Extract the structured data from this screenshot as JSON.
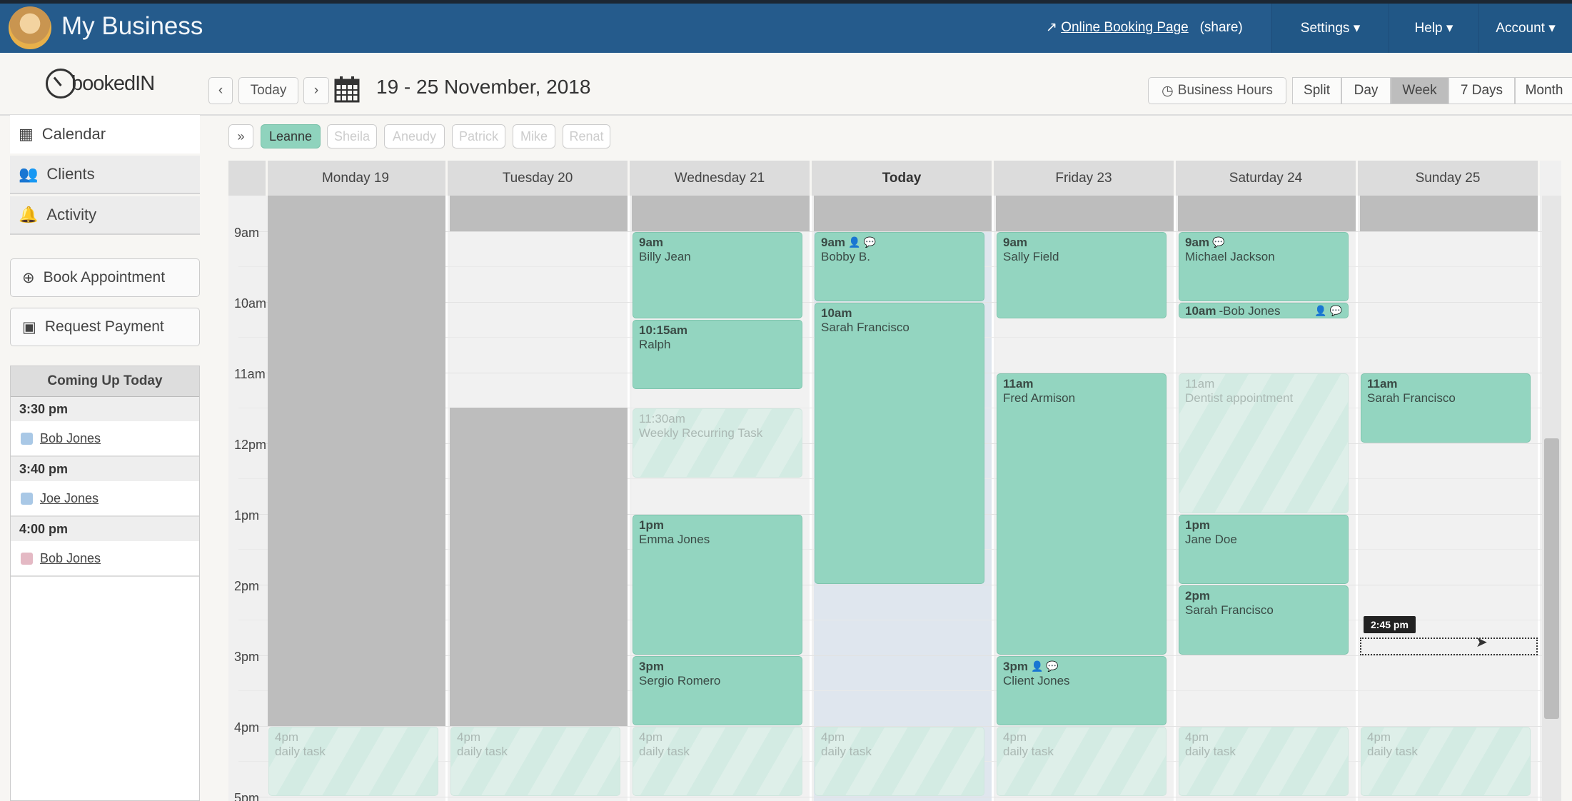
{
  "header": {
    "title": "My Business",
    "booking_link": "Online Booking Page",
    "share": "(share)",
    "menus": [
      "Settings ▾",
      "Help ▾",
      "Account ▾"
    ],
    "color": "#255b8c"
  },
  "toolbar": {
    "logo": "bookedIN",
    "today": "Today",
    "prev": "‹",
    "next": "›",
    "date_range": "19 - 25 November, 2018",
    "business_hours": "Business Hours",
    "views": [
      {
        "label": "Split"
      },
      {
        "label": "Day"
      },
      {
        "label": "Week",
        "active": true
      },
      {
        "label": "7 Days"
      },
      {
        "label": "Month"
      }
    ]
  },
  "sidebar": {
    "items": [
      {
        "label": "Calendar",
        "icon": "calendar-icon",
        "active": true
      },
      {
        "label": "Clients",
        "icon": "users-icon"
      },
      {
        "label": "Activity",
        "icon": "bell-icon"
      }
    ],
    "book_appointment": "Book Appointment",
    "request_payment": "Request Payment",
    "upcoming": {
      "title": "Coming Up Today",
      "items": [
        {
          "time": "3:30 pm",
          "name": "Bob Jones",
          "color": "#a9c8e6"
        },
        {
          "time": "3:40 pm",
          "name": "Joe Jones",
          "color": "#a9c8e6"
        },
        {
          "time": "4:00 pm",
          "name": "Bob Jones",
          "color": "#e4b9c4"
        }
      ]
    }
  },
  "staff": {
    "expand": "»",
    "members": [
      {
        "name": "Leanne",
        "active": true
      },
      {
        "name": "Sheila"
      },
      {
        "name": "Aneudy"
      },
      {
        "name": "Patrick"
      },
      {
        "name": "Mike"
      },
      {
        "name": "Renat"
      }
    ]
  },
  "calendar": {
    "days": [
      {
        "label": "Monday 19"
      },
      {
        "label": "Tuesday 20"
      },
      {
        "label": "Wednesday 21"
      },
      {
        "label": "Today",
        "today": true
      },
      {
        "label": "Friday 23"
      },
      {
        "label": "Saturday 24"
      },
      {
        "label": "Sunday 25"
      }
    ],
    "hours": [
      "9am",
      "10am",
      "11am",
      "12pm",
      "1pm",
      "2pm",
      "3pm",
      "4pm",
      "5pm"
    ],
    "unavailable": [
      {
        "day": 0,
        "start": "8:30",
        "end": "16:00"
      },
      {
        "day": 1,
        "start": "8:30",
        "end": "9:00"
      },
      {
        "day": 1,
        "start": "11:30",
        "end": "16:00"
      },
      {
        "day": 2,
        "start": "8:30",
        "end": "9:00"
      },
      {
        "day": 3,
        "start": "8:30",
        "end": "9:00"
      },
      {
        "day": 4,
        "start": "8:30",
        "end": "9:00"
      },
      {
        "day": 5,
        "start": "8:30",
        "end": "9:00"
      },
      {
        "day": 6,
        "start": "8:30",
        "end": "9:00"
      }
    ],
    "events": [
      {
        "day": 2,
        "start": "9:00",
        "end": "10:15",
        "time": "9am",
        "title": "Billy Jean"
      },
      {
        "day": 2,
        "start": "10:15",
        "end": "11:15",
        "time": "10:15am",
        "title": "Ralph"
      },
      {
        "day": 2,
        "start": "11:30",
        "end": "12:30",
        "time": "11:30am",
        "title": "Weekly Recurring Task",
        "faded": true
      },
      {
        "day": 2,
        "start": "13:00",
        "end": "15:00",
        "time": "1pm",
        "title": "Emma Jones"
      },
      {
        "day": 2,
        "start": "15:00",
        "end": "16:00",
        "time": "3pm",
        "title": "Sergio Romero"
      },
      {
        "day": 3,
        "start": "9:00",
        "end": "10:00",
        "time": "9am",
        "title": "Bobby B.",
        "icons": [
          "user-icon",
          "comment-icon"
        ]
      },
      {
        "day": 3,
        "start": "10:00",
        "end": "14:00",
        "time": "10am",
        "title": "Sarah Francisco"
      },
      {
        "day": 4,
        "start": "9:00",
        "end": "10:15",
        "time": "9am",
        "title": "Sally Field"
      },
      {
        "day": 4,
        "start": "11:00",
        "end": "15:00",
        "time": "11am",
        "title": "Fred Armison"
      },
      {
        "day": 4,
        "start": "15:00",
        "end": "16:00",
        "time": "3pm",
        "title": "Client Jones",
        "icons": [
          "user-icon",
          "comment-icon"
        ]
      },
      {
        "day": 5,
        "start": "9:00",
        "end": "10:00",
        "time": "9am",
        "title": "Michael Jackson",
        "icons": [
          "comment-icon"
        ]
      },
      {
        "day": 5,
        "start": "10:00",
        "end": "10:15",
        "time": "10am",
        "title": "-Bob Jones",
        "inline": true,
        "icons_right": [
          "user-icon",
          "comment-icon"
        ]
      },
      {
        "day": 5,
        "start": "11:00",
        "end": "13:00",
        "time": "11am",
        "title": "Dentist appointment",
        "faded": true
      },
      {
        "day": 5,
        "start": "13:00",
        "end": "14:00",
        "time": "1pm",
        "title": "Jane Doe"
      },
      {
        "day": 5,
        "start": "14:00",
        "end": "15:00",
        "time": "2pm",
        "title": "Sarah Francisco"
      },
      {
        "day": 6,
        "start": "11:00",
        "end": "12:00",
        "time": "11am",
        "title": "Sarah Francisco"
      },
      {
        "day": 0,
        "start": "16:00",
        "end": "17:00",
        "time": "4pm",
        "title": "daily task",
        "faded": true
      },
      {
        "day": 1,
        "start": "16:00",
        "end": "17:00",
        "time": "4pm",
        "title": "daily task",
        "faded": true
      },
      {
        "day": 2,
        "start": "16:00",
        "end": "17:00",
        "time": "4pm",
        "title": "daily task",
        "faded": true
      },
      {
        "day": 3,
        "start": "16:00",
        "end": "17:00",
        "time": "4pm",
        "title": "daily task",
        "faded": true
      },
      {
        "day": 4,
        "start": "16:00",
        "end": "17:00",
        "time": "4pm",
        "title": "daily task",
        "faded": true
      },
      {
        "day": 5,
        "start": "16:00",
        "end": "17:00",
        "time": "4pm",
        "title": "daily task",
        "faded": true
      },
      {
        "day": 6,
        "start": "16:00",
        "end": "17:00",
        "time": "4pm",
        "title": "daily task",
        "faded": true
      }
    ],
    "hover": {
      "day": 6,
      "start": "14:45",
      "end": "15:00",
      "tooltip": "2:45 pm"
    }
  }
}
